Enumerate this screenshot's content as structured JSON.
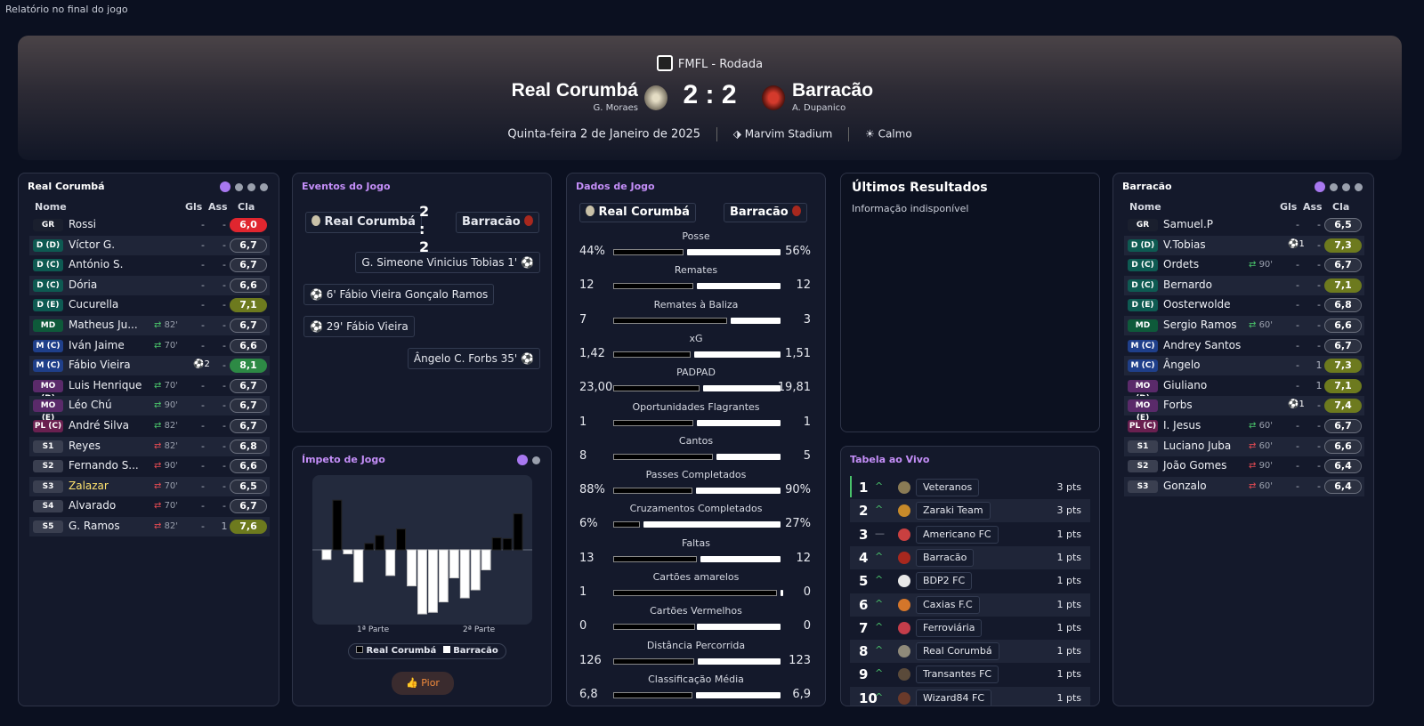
{
  "topbar": {
    "title": "Relatório no final do jogo"
  },
  "match": {
    "competition": "FMFL - Rodada",
    "home": "Real Corumbá",
    "away": "Barracão",
    "home_coach": "G. Moraes",
    "away_coach": "A. Dupanico",
    "score": "2 : 2",
    "date": "Quinta-feira 2 de Janeiro de 2025",
    "stadium": "Marvim Stadium",
    "weather": "Calmo"
  },
  "home_panel": {
    "title": "Real Corumbá",
    "col_name": "Nome",
    "col_gls": "Gls",
    "col_ass": "Ass",
    "col_cla": "Cla",
    "players": [
      {
        "pos": "GR",
        "name": "Rossi",
        "sub": "",
        "subdir": "",
        "gls": "-",
        "ass": "-",
        "rating": "6,0",
        "color": "#e0262f",
        "event": ""
      },
      {
        "pos": "D (D)",
        "name": "Víctor G.",
        "sub": "",
        "subdir": "",
        "gls": "-",
        "ass": "-",
        "rating": "6,7",
        "color": "",
        "event": ""
      },
      {
        "pos": "D (C)",
        "name": "António S.",
        "sub": "",
        "subdir": "",
        "gls": "-",
        "ass": "-",
        "rating": "6,7",
        "color": "",
        "event": ""
      },
      {
        "pos": "D (C)",
        "name": "Dória",
        "sub": "",
        "subdir": "",
        "gls": "-",
        "ass": "-",
        "rating": "6,6",
        "color": "",
        "event": ""
      },
      {
        "pos": "D (E)",
        "name": "Cucurella",
        "sub": "",
        "subdir": "",
        "gls": "-",
        "ass": "-",
        "rating": "7,1",
        "color": "#6d7a1e",
        "event": ""
      },
      {
        "pos": "MD",
        "name": "Matheus Ju...",
        "sub": "82'",
        "subdir": "in",
        "gls": "-",
        "ass": "-",
        "rating": "6,7",
        "color": "",
        "event": ""
      },
      {
        "pos": "M (C)",
        "name": "Iván Jaime",
        "sub": "70'",
        "subdir": "in",
        "gls": "-",
        "ass": "-",
        "rating": "6,6",
        "color": "",
        "event": ""
      },
      {
        "pos": "M (C)",
        "name": "Fábio Vieira",
        "sub": "",
        "subdir": "",
        "gls": "",
        "ass": "-",
        "rating": "8,1",
        "color": "#2d8a45",
        "event": "⚽2"
      },
      {
        "pos": "MO (D)",
        "name": "Luis Henrique",
        "sub": "70'",
        "subdir": "in",
        "gls": "-",
        "ass": "-",
        "rating": "6,7",
        "color": "",
        "event": ""
      },
      {
        "pos": "MO (E)",
        "name": "Léo Chú",
        "sub": "90'",
        "subdir": "in",
        "gls": "-",
        "ass": "-",
        "rating": "6,7",
        "color": "",
        "event": ""
      },
      {
        "pos": "PL (C)",
        "name": "André Silva",
        "sub": "82'",
        "subdir": "in",
        "gls": "-",
        "ass": "-",
        "rating": "6,7",
        "color": "",
        "event": ""
      },
      {
        "pos": "S1",
        "name": "Reyes",
        "sub": "82'",
        "subdir": "out",
        "gls": "-",
        "ass": "-",
        "rating": "6,8",
        "color": "",
        "event": ""
      },
      {
        "pos": "S2",
        "name": "Fernando S...",
        "sub": "90'",
        "subdir": "out",
        "gls": "-",
        "ass": "-",
        "rating": "6,6",
        "color": "",
        "event": ""
      },
      {
        "pos": "S3",
        "name": "Zalazar",
        "sub": "70'",
        "subdir": "out",
        "gls": "-",
        "ass": "-",
        "rating": "6,5",
        "color": "",
        "event": "",
        "yellow": true
      },
      {
        "pos": "S4",
        "name": "Alvarado",
        "sub": "70'",
        "subdir": "out",
        "gls": "-",
        "ass": "-",
        "rating": "6,7",
        "color": "",
        "event": ""
      },
      {
        "pos": "S5",
        "name": "G. Ramos",
        "sub": "82'",
        "subdir": "out",
        "gls": "-",
        "ass": "1",
        "rating": "7,6",
        "color": "#6d7a1e",
        "event": ""
      }
    ]
  },
  "away_panel": {
    "title": "Barracão",
    "col_name": "Nome",
    "col_gls": "Gls",
    "col_ass": "Ass",
    "col_cla": "Cla",
    "players": [
      {
        "pos": "GR",
        "name": "Samuel.P",
        "sub": "",
        "subdir": "",
        "gls": "-",
        "ass": "-",
        "rating": "6,5",
        "color": "",
        "event": ""
      },
      {
        "pos": "D (D)",
        "name": "V.Tobias",
        "sub": "",
        "subdir": "",
        "gls": "",
        "ass": "-",
        "rating": "7,3",
        "color": "#6d7a1e",
        "event": "⚽1"
      },
      {
        "pos": "D (C)",
        "name": "Ordets",
        "sub": "90'",
        "subdir": "in",
        "gls": "-",
        "ass": "-",
        "rating": "6,7",
        "color": "",
        "event": ""
      },
      {
        "pos": "D (C)",
        "name": "Bernardo",
        "sub": "",
        "subdir": "",
        "gls": "-",
        "ass": "-",
        "rating": "7,1",
        "color": "#6d7a1e",
        "event": ""
      },
      {
        "pos": "D (E)",
        "name": "Oosterwolde",
        "sub": "",
        "subdir": "",
        "gls": "-",
        "ass": "-",
        "rating": "6,8",
        "color": "",
        "event": ""
      },
      {
        "pos": "MD",
        "name": "Sergio Ramos",
        "sub": "60'",
        "subdir": "in",
        "gls": "-",
        "ass": "-",
        "rating": "6,6",
        "color": "",
        "event": ""
      },
      {
        "pos": "M (C)",
        "name": "Andrey Santos",
        "sub": "",
        "subdir": "",
        "gls": "-",
        "ass": "-",
        "rating": "6,7",
        "color": "",
        "event": ""
      },
      {
        "pos": "M (C)",
        "name": "Ângelo",
        "sub": "",
        "subdir": "",
        "gls": "-",
        "ass": "1",
        "rating": "7,3",
        "color": "#6d7a1e",
        "event": ""
      },
      {
        "pos": "MO (D)",
        "name": "Giuliano",
        "sub": "",
        "subdir": "",
        "gls": "-",
        "ass": "1",
        "rating": "7,1",
        "color": "#6d7a1e",
        "event": ""
      },
      {
        "pos": "MO (E)",
        "name": "Forbs",
        "sub": "",
        "subdir": "",
        "gls": "",
        "ass": "-",
        "rating": "7,4",
        "color": "#6d7a1e",
        "event": "⚽1"
      },
      {
        "pos": "PL (C)",
        "name": "I. Jesus",
        "sub": "60'",
        "subdir": "in",
        "gls": "-",
        "ass": "-",
        "rating": "6,7",
        "color": "",
        "event": ""
      },
      {
        "pos": "S1",
        "name": "Luciano Juba",
        "sub": "60'",
        "subdir": "out",
        "gls": "-",
        "ass": "-",
        "rating": "6,6",
        "color": "",
        "event": ""
      },
      {
        "pos": "S2",
        "name": "João Gomes",
        "sub": "90'",
        "subdir": "out",
        "gls": "-",
        "ass": "-",
        "rating": "6,4",
        "color": "",
        "event": ""
      },
      {
        "pos": "S3",
        "name": "Gonzalo",
        "sub": "60'",
        "subdir": "out",
        "gls": "-",
        "ass": "-",
        "rating": "6,4",
        "color": "",
        "event": ""
      }
    ]
  },
  "events": {
    "title": "Eventos do Jogo",
    "home": "Real Corumbá",
    "away": "Barracão",
    "score": "2 : 2",
    "items": [
      {
        "side": "away",
        "text": "G. Simeone  Vinicius Tobias  1'"
      },
      {
        "side": "home",
        "text": "6'  Fábio Vieira  Gonçalo Ramos"
      },
      {
        "side": "home",
        "text": "29'  Fábio Vieira"
      },
      {
        "side": "away",
        "text": "Ângelo  C. Forbs  35'"
      }
    ]
  },
  "momentum": {
    "title": "Ímpeto de Jogo",
    "half1": "1ª Parte",
    "half2": "2ª Parte",
    "legend_home": "Real Corumbá",
    "legend_away": "Barracão",
    "button": "Pior",
    "values": [
      -12,
      62,
      -5,
      -40,
      8,
      18,
      -32,
      26,
      -45,
      -80,
      -78,
      -65,
      -35,
      -60,
      -50,
      -25,
      15,
      14,
      45
    ]
  },
  "stats": {
    "title": "Dados de Jogo",
    "home": "Real Corumbá",
    "away": "Barracão",
    "rows": [
      {
        "label": "Posse",
        "home": "44%",
        "away": "56%",
        "h": 44,
        "a": 56
      },
      {
        "label": "Remates",
        "home": "12",
        "away": "12",
        "h": 12,
        "a": 12
      },
      {
        "label": "Remates à Baliza",
        "home": "7",
        "away": "3",
        "h": 7,
        "a": 3
      },
      {
        "label": "xG",
        "home": "1,42",
        "away": "1,51",
        "h": 1.42,
        "a": 1.51
      },
      {
        "label": "PADPAD",
        "home": "23,00",
        "away": "19,81",
        "h": 23,
        "a": 19.81
      },
      {
        "label": "Oportunidades Flagrantes",
        "home": "1",
        "away": "1",
        "h": 1,
        "a": 1
      },
      {
        "label": "Cantos",
        "home": "8",
        "away": "5",
        "h": 8,
        "a": 5
      },
      {
        "label": "Passes Completados",
        "home": "88%",
        "away": "90%",
        "h": 88,
        "a": 90
      },
      {
        "label": "Cruzamentos Completados",
        "home": "6%",
        "away": "27%",
        "h": 6,
        "a": 27
      },
      {
        "label": "Faltas",
        "home": "13",
        "away": "12",
        "h": 13,
        "a": 12
      },
      {
        "label": "Cartões amarelos",
        "home": "1",
        "away": "0",
        "h": 1,
        "a": 0
      },
      {
        "label": "Cartões Vermelhos",
        "home": "0",
        "away": "0",
        "h": 0,
        "a": 0
      },
      {
        "label": "Distância Percorrida",
        "home": "126",
        "away": "123",
        "h": 126,
        "a": 123
      },
      {
        "label": "Classificação Média",
        "home": "6,8",
        "away": "6,9",
        "h": 6.8,
        "a": 6.9
      }
    ]
  },
  "last_results": {
    "title": "Últimos Resultados",
    "info": "Informação indisponível"
  },
  "live_table": {
    "title": "Tabela ao Vivo",
    "rows": [
      {
        "rank": "1",
        "trend": "up",
        "team": "Veteranos",
        "pts": "3 pts",
        "crest": "#8a7b55"
      },
      {
        "rank": "2",
        "trend": "up",
        "team": "Zaraki Team",
        "pts": "3 pts",
        "crest": "#c78a2a"
      },
      {
        "rank": "3",
        "trend": "flat",
        "team": "Americano FC",
        "pts": "1 pts",
        "crest": "#c94040"
      },
      {
        "rank": "4",
        "trend": "up",
        "team": "Barracão",
        "pts": "1 pts",
        "crest": "#a8281e"
      },
      {
        "rank": "5",
        "trend": "up",
        "team": "BDP2 FC",
        "pts": "1 pts",
        "crest": "#e8e8e8"
      },
      {
        "rank": "6",
        "trend": "up",
        "team": "Caxias F.C",
        "pts": "1 pts",
        "crest": "#d4762a"
      },
      {
        "rank": "7",
        "trend": "up",
        "team": "Ferroviária",
        "pts": "1 pts",
        "crest": "#c43d4a"
      },
      {
        "rank": "8",
        "trend": "up",
        "team": "Real Corumbá",
        "pts": "1 pts",
        "crest": "#8f8a7a"
      },
      {
        "rank": "9",
        "trend": "up",
        "team": "Transantes FC",
        "pts": "1 pts",
        "crest": "#5a4a3a"
      },
      {
        "rank": "10",
        "trend": "up",
        "team": "Wizard84 FC",
        "pts": "1 pts",
        "crest": "#6a3a2a"
      }
    ]
  },
  "colors": {
    "accent": "#a878f0",
    "rating_green": "#2d8a45",
    "rating_olive": "#6d7a1e",
    "rating_red": "#e0262f"
  }
}
